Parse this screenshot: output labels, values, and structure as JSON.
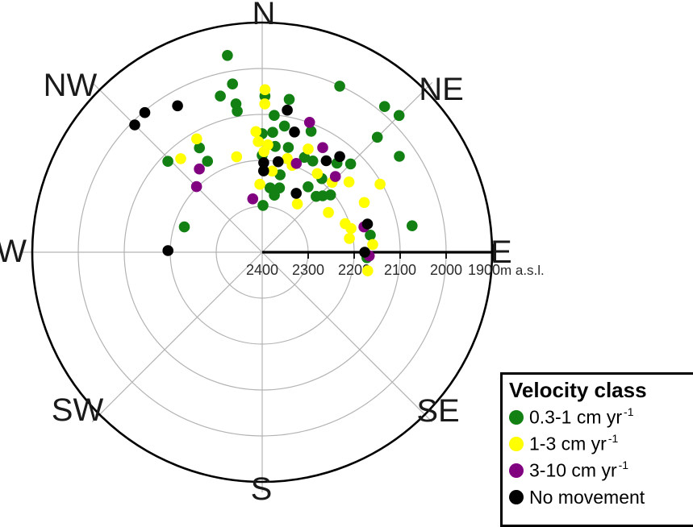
{
  "figure": {
    "compass": {
      "labels": [
        "N",
        "NE",
        "E",
        "SE",
        "S",
        "SW",
        "W",
        "NW"
      ]
    },
    "radial_axis": {
      "tick_labels": [
        "2400",
        "2300",
        "2200",
        "2100",
        "2000",
        "1900"
      ],
      "unit_label": "m a.s.l."
    },
    "legend": {
      "title": "Velocity class",
      "entries": [
        {
          "label": "0.3-1 cm yr",
          "sup": "-1",
          "color": "#128012"
        },
        {
          "label": "1-3 cm yr",
          "sup": "-1",
          "color": "#ffff00"
        },
        {
          "label": "3-10 cm yr",
          "sup": "-1",
          "color": "#800080"
        },
        {
          "label": "No movement",
          "sup": "",
          "color": "#000000"
        }
      ]
    },
    "colors": {
      "grid": "#b3b3b3",
      "outer_ring": "#000000",
      "east_axis": "#000000",
      "tick_text": "#2a2a2a",
      "compass_text": "#1a1a1a"
    }
  },
  "chart_data": {
    "type": "scatter",
    "coordinate_system": "polar",
    "angular_axis": {
      "labels": [
        "N",
        "NE",
        "E",
        "SE",
        "S",
        "SW",
        "W",
        "NW"
      ],
      "convention": "azimuth degrees clockwise from North"
    },
    "radial_axis": {
      "unit": "m a.s.l.",
      "ticks": [
        2400,
        2300,
        2200,
        2100,
        2000,
        1900
      ],
      "center_value": 2400,
      "edge_value": 1900,
      "note": "elevation decreases outward from plot centre"
    },
    "legend_title": "Velocity class",
    "series": [
      {
        "name": "0.3-1 cm yr-1",
        "color": "#128012",
        "points_az_elev": [
          [
            350,
            1965
          ],
          [
            350,
            2028
          ],
          [
            345,
            2048
          ],
          [
            1,
            2060
          ],
          [
            350,
            2072
          ],
          [
            350,
            2088
          ],
          [
            25,
            2001
          ],
          [
            10,
            2062
          ],
          [
            5,
            2101
          ],
          [
            10,
            2121
          ],
          [
            22,
            2116
          ],
          [
            0,
            2142
          ],
          [
            5,
            2138
          ],
          [
            7,
            2168
          ],
          [
            14,
            2165
          ],
          [
            329,
            2135
          ],
          [
            0,
            2189
          ],
          [
            329,
            2169
          ],
          [
            24,
            2174
          ],
          [
            29,
            2173
          ],
          [
            40,
            2147
          ],
          [
            45,
            2128
          ],
          [
            39,
            2194
          ],
          [
            13,
            2227
          ],
          [
            7,
            2259
          ],
          [
            15,
            2255
          ],
          [
            12,
            2273
          ],
          [
            1,
            2298
          ],
          [
            35,
            2226
          ],
          [
            44,
            2231
          ],
          [
            47,
            2220
          ],
          [
            50,
            2206
          ],
          [
            81,
            2162
          ],
          [
            93,
            2172
          ],
          [
            80,
            2069
          ],
          [
            40,
            1986
          ],
          [
            45,
            1979
          ],
          [
            45,
            2046
          ],
          [
            55,
            2036
          ],
          [
            314,
            2115
          ],
          [
            288,
            2222
          ]
        ]
      },
      {
        "name": "1-3 cm yr-1",
        "color": "#ffff00",
        "points_az_elev": [
          [
            1,
            2046
          ],
          [
            1,
            2077
          ],
          [
            357,
            2137
          ],
          [
            358,
            2159
          ],
          [
            3,
            2166
          ],
          [
            1,
            2181
          ],
          [
            330,
            2115
          ],
          [
            345,
            2185
          ],
          [
            15,
            2189
          ],
          [
            19,
            2200
          ],
          [
            24,
            2154
          ],
          [
            7,
            2222
          ],
          [
            35,
            2191
          ],
          [
            358,
            2252
          ],
          [
            45,
            2185
          ],
          [
            51,
            2157
          ],
          [
            60,
            2104
          ],
          [
            36,
            2270
          ],
          [
            59,
            2232
          ],
          [
            64,
            2153
          ],
          [
            71,
            2209
          ],
          [
            75,
            2200
          ],
          [
            81,
            2208
          ],
          [
            86,
            2159
          ],
          [
            100,
            2167
          ],
          [
            319,
            2130
          ]
        ]
      },
      {
        "name": "3-10 cm yr-1",
        "color": "#800080",
        "points_az_elev": [
          [
            20,
            2099
          ],
          [
            323,
            2173
          ],
          [
            21,
            2193
          ],
          [
            30,
            2137
          ],
          [
            44,
            2171
          ],
          [
            315,
            2198
          ],
          [
            350,
            2282
          ],
          [
            76,
            2172
          ],
          [
            92,
            2167
          ]
        ]
      },
      {
        "name": "No movement",
        "color": "#000000",
        "points_az_elev": [
          [
            10,
            2086
          ],
          [
            15,
            2129
          ],
          [
            1,
            2205
          ],
          [
            1,
            2223
          ],
          [
            10,
            2200
          ],
          [
            35,
            2157
          ],
          [
            39,
            2132
          ],
          [
            30,
            2252
          ],
          [
            75,
            2163
          ],
          [
            90,
            2177
          ],
          [
            320,
            2003
          ],
          [
            315,
            2008
          ],
          [
            330,
            2032
          ],
          [
            271,
            2195
          ]
        ]
      }
    ]
  }
}
